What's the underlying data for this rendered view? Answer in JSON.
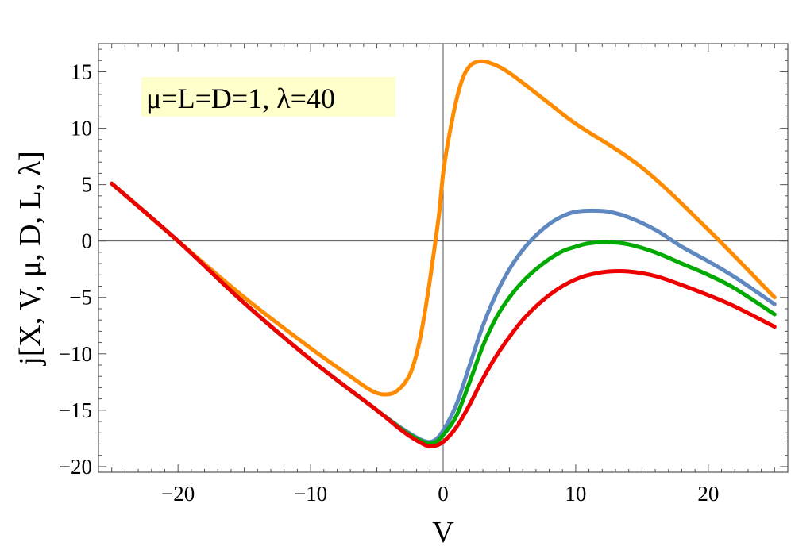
{
  "chart_data": {
    "type": "line",
    "title": "",
    "xlabel": "V",
    "ylabel": "j[X, V, μ, D, L, λ]",
    "xlim": [
      -26,
      26
    ],
    "ylim": [
      -20.5,
      17.5
    ],
    "grid": false,
    "annotation": {
      "text": "μ=L=D=1, λ=40",
      "background": "#ffffcc"
    },
    "x_ticks": [
      -20,
      -10,
      0,
      10,
      20
    ],
    "x_tick_labels": [
      "−20",
      "−10",
      "0",
      "10",
      "20"
    ],
    "y_ticks": [
      -20,
      -15,
      -10,
      -5,
      0,
      5,
      10,
      15
    ],
    "y_tick_labels": [
      "−20",
      "−15",
      "−10",
      "−5",
      "0",
      "5",
      "10",
      "15"
    ],
    "series": [
      {
        "color": "#ff8c00",
        "points": [
          [
            -25,
            5.1
          ],
          [
            -20,
            0
          ],
          [
            -15,
            -5
          ],
          [
            -10,
            -9.5
          ],
          [
            -7,
            -12
          ],
          [
            -5.5,
            -13.2
          ],
          [
            -4.5,
            -13.6
          ],
          [
            -3.5,
            -13.3
          ],
          [
            -2.5,
            -11.8
          ],
          [
            -1.8,
            -9
          ],
          [
            -1.2,
            -5
          ],
          [
            -0.7,
            -1
          ],
          [
            -0.3,
            2.5
          ],
          [
            0,
            6
          ],
          [
            0.4,
            9
          ],
          [
            1,
            12.5
          ],
          [
            1.5,
            14.5
          ],
          [
            2,
            15.5
          ],
          [
            2.6,
            15.9
          ],
          [
            3.5,
            15.8
          ],
          [
            5,
            14.9
          ],
          [
            8,
            12.2
          ],
          [
            10,
            10.4
          ],
          [
            15,
            6.5
          ],
          [
            20,
            1
          ],
          [
            25,
            -5
          ]
        ]
      },
      {
        "color": "#5f88c0",
        "points": [
          [
            -25,
            5.1
          ],
          [
            -20,
            0
          ],
          [
            -15,
            -5.5
          ],
          [
            -10,
            -10.5
          ],
          [
            -5,
            -15
          ],
          [
            -3,
            -16.7
          ],
          [
            -1.5,
            -17.7
          ],
          [
            -0.7,
            -17.7
          ],
          [
            0,
            -16.8
          ],
          [
            1,
            -14.5
          ],
          [
            2,
            -11
          ],
          [
            3,
            -7.5
          ],
          [
            4,
            -4.7
          ],
          [
            5,
            -2.5
          ],
          [
            6,
            -0.8
          ],
          [
            7,
            0.5
          ],
          [
            8,
            1.5
          ],
          [
            9,
            2.2
          ],
          [
            10,
            2.6
          ],
          [
            11.3,
            2.7
          ],
          [
            12.5,
            2.6
          ],
          [
            14,
            2.1
          ],
          [
            16,
            1
          ],
          [
            18,
            -0.5
          ],
          [
            20,
            -1.8
          ],
          [
            22,
            -3.2
          ],
          [
            25,
            -5.6
          ]
        ]
      },
      {
        "color": "#00aa00",
        "points": [
          [
            -25,
            5.1
          ],
          [
            -20,
            0
          ],
          [
            -15,
            -5.5
          ],
          [
            -10,
            -10.5
          ],
          [
            -5,
            -15
          ],
          [
            -3,
            -16.8
          ],
          [
            -1.5,
            -17.8
          ],
          [
            -0.7,
            -17.9
          ],
          [
            0,
            -17.2
          ],
          [
            1,
            -15.5
          ],
          [
            2,
            -12.5
          ],
          [
            3,
            -9.3
          ],
          [
            4,
            -6.8
          ],
          [
            5,
            -5
          ],
          [
            6,
            -3.6
          ],
          [
            7,
            -2.5
          ],
          [
            8,
            -1.6
          ],
          [
            9,
            -0.9
          ],
          [
            10,
            -0.5
          ],
          [
            11,
            -0.2
          ],
          [
            12.5,
            -0.1
          ],
          [
            14,
            -0.3
          ],
          [
            16,
            -1
          ],
          [
            18,
            -2
          ],
          [
            20,
            -3
          ],
          [
            22,
            -4.2
          ],
          [
            25,
            -6.5
          ]
        ]
      },
      {
        "color": "#ee0000",
        "points": [
          [
            -25,
            5.1
          ],
          [
            -20,
            0
          ],
          [
            -15,
            -5.5
          ],
          [
            -10,
            -10.5
          ],
          [
            -5,
            -15
          ],
          [
            -3,
            -16.9
          ],
          [
            -1.5,
            -18
          ],
          [
            -0.8,
            -18.2
          ],
          [
            0,
            -17.8
          ],
          [
            1,
            -16.5
          ],
          [
            2,
            -14.5
          ],
          [
            3,
            -12.2
          ],
          [
            4,
            -10.2
          ],
          [
            5,
            -8.5
          ],
          [
            6,
            -7
          ],
          [
            7,
            -5.8
          ],
          [
            8,
            -4.8
          ],
          [
            9,
            -4
          ],
          [
            10,
            -3.4
          ],
          [
            11,
            -3
          ],
          [
            12.5,
            -2.7
          ],
          [
            14,
            -2.7
          ],
          [
            16,
            -3.1
          ],
          [
            18,
            -3.9
          ],
          [
            20,
            -4.8
          ],
          [
            22,
            -5.8
          ],
          [
            25,
            -7.6
          ]
        ]
      }
    ]
  }
}
